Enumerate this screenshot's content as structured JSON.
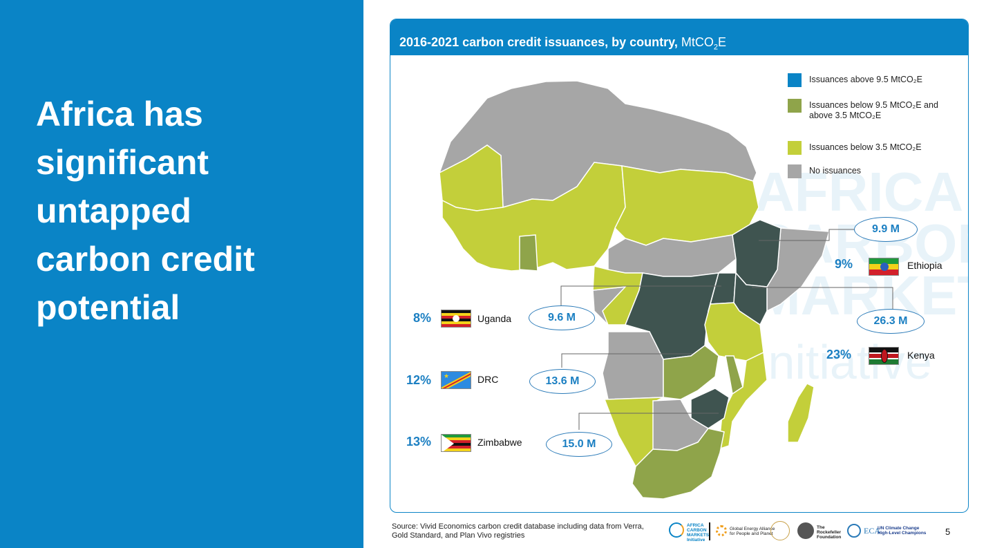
{
  "headline": [
    "Africa has",
    "significant",
    "untapped",
    "carbon credit",
    "potential"
  ],
  "chart": {
    "title_bold": "2016-2021 carbon credit issuances, by country,",
    "title_unit_pre": "MtCO",
    "title_unit_sub": "2",
    "title_unit_post": "E"
  },
  "legend": [
    {
      "color": "#0a84c6",
      "label": "Issuances above 9.5 MtCO₂E"
    },
    {
      "color": "#8fa44a",
      "label": "Issuances below 9.5 MtCO₂E and above 3.5 MtCO₂E"
    },
    {
      "color": "#c3cf3a",
      "label": "Issuances below 3.5 MtCO₂E"
    },
    {
      "color": "#a6a6a6",
      "label": "No issuances"
    }
  ],
  "countries": {
    "ethiopia": {
      "name": "Ethiopia",
      "pct": "9%",
      "value": "9.9 M"
    },
    "kenya": {
      "name": "Kenya",
      "pct": "23%",
      "value": "26.3 M"
    },
    "uganda": {
      "name": "Uganda",
      "pct": "8%",
      "value": "9.6 M"
    },
    "drc": {
      "name": "DRC",
      "pct": "12%",
      "value": "13.6 M"
    },
    "zimbabwe": {
      "name": "Zimbabwe",
      "pct": "13%",
      "value": "15.0 M"
    }
  },
  "watermark": [
    "AFRICA",
    "CARBON",
    "MARKETS",
    "Initiative"
  ],
  "source": "Source: Vivid Economics carbon credit database including data from Verra, Gold Standard, and Plan Vivo registries",
  "logos": {
    "acmi": [
      "AFRICA",
      "CARBON",
      "MARKETS",
      "Initiative"
    ],
    "gea": [
      "Global Energy Alliance",
      "for People and Planet"
    ],
    "rockefeller": [
      "The",
      "Rockefeller",
      "Foundation"
    ],
    "eca": "ECA",
    "unfccc": [
      "UN Climate Change",
      "High-Level Champions"
    ]
  },
  "page_number": "5",
  "colors": {
    "high": "#3f5450",
    "mid": "#8fa44a",
    "low": "#c3cf3a",
    "none": "#a6a6a6",
    "accent": "#0a84c6"
  }
}
